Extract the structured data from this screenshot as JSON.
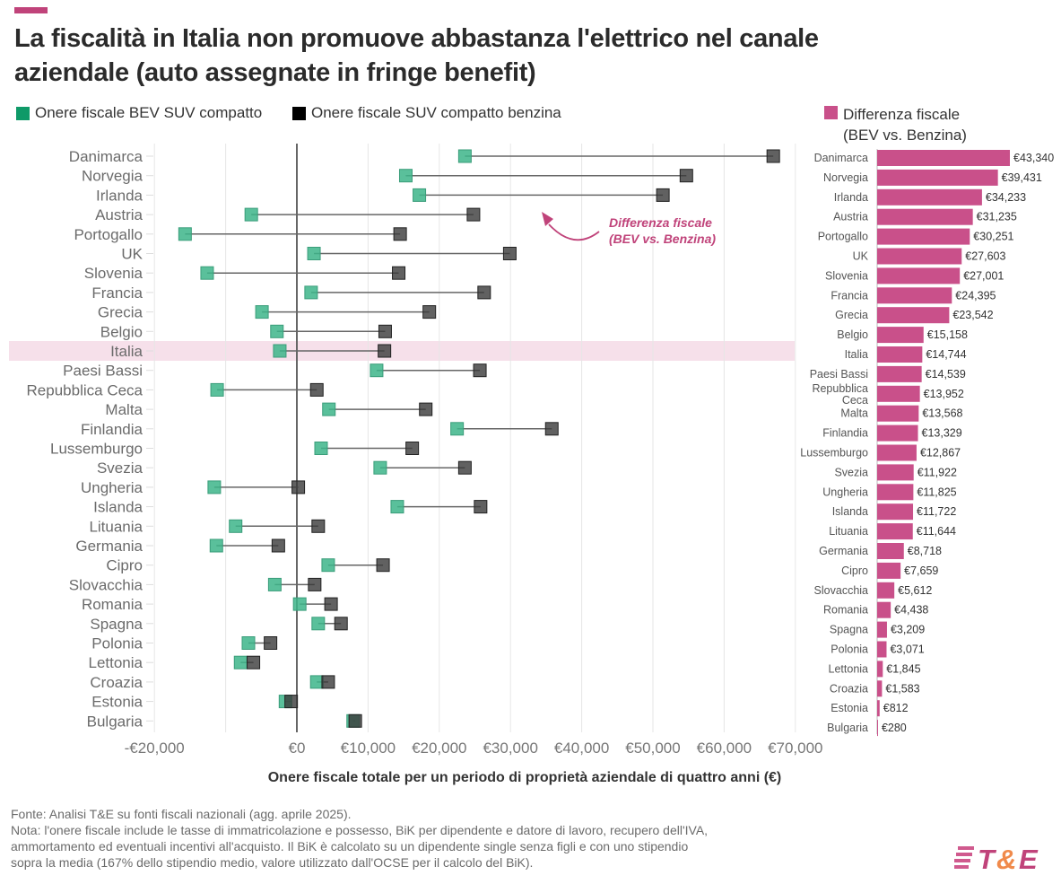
{
  "title": "La fiscalità in Italia non promuove abbastanza l'elettrico nel canale aziendale (auto assegnate in fringe benefit)",
  "colors": {
    "bev": "#3db589",
    "benzina": "#3a3a3a",
    "difference": "#c9508a",
    "highlight": "#f6e0ea",
    "accent": "#c0437a"
  },
  "legend": {
    "bev": "Onere fiscale BEV SUV compatto",
    "benzina": "Onere fiscale SUV compatto benzina",
    "difference_line1": "Differenza fiscale",
    "difference_line2": "(BEV vs. Benzina)"
  },
  "annotation": {
    "line1": "Differenza fiscale",
    "line2": "(BEV vs. Benzina)"
  },
  "chart_data": [
    {
      "type": "dumbbell",
      "xlabel": "Onere fiscale totale per un periodo di proprietà aziendale di quattro anni (€)",
      "xlim": [
        -20000,
        70000
      ],
      "xticks": [
        -20000,
        -10000,
        0,
        10000,
        20000,
        30000,
        40000,
        50000,
        60000,
        70000
      ],
      "xtick_labels": [
        "-€20,000",
        "",
        "€0",
        "€10,000",
        "€20,000",
        "€30,000",
        "€40,000",
        "€50,000",
        "€60,000",
        "€70,000"
      ],
      "grid": true,
      "highlight": "Italia",
      "categories": [
        "Danimarca",
        "Norvegia",
        "Irlanda",
        "Austria",
        "Portogallo",
        "UK",
        "Slovenia",
        "Francia",
        "Grecia",
        "Belgio",
        "Italia",
        "Paesi Bassi",
        "Repubblica Ceca",
        "Malta",
        "Finlandia",
        "Lussemburgo",
        "Svezia",
        "Ungheria",
        "Islanda",
        "Lituania",
        "Germania",
        "Cipro",
        "Slovacchia",
        "Romania",
        "Spagna",
        "Polonia",
        "Lettonia",
        "Croazia",
        "Estonia",
        "Bulgaria"
      ],
      "series": [
        {
          "name": "Onere fiscale BEV SUV compatto",
          "values": [
            23600,
            15300,
            17200,
            -6400,
            -15700,
            2400,
            -12600,
            2000,
            -4900,
            -2800,
            -2400,
            11200,
            -11200,
            4500,
            22500,
            3400,
            11700,
            -11600,
            14100,
            -8600,
            -11300,
            4400,
            -3100,
            400,
            3000,
            -6800,
            -7900,
            2800,
            -1600,
            7900
          ]
        },
        {
          "name": "Onere fiscale SUV compatto benzina",
          "values": [
            66900,
            54700,
            51400,
            24800,
            14500,
            29900,
            14300,
            26300,
            18600,
            12400,
            12300,
            25700,
            2800,
            18100,
            35800,
            16200,
            23600,
            200,
            25800,
            3000,
            -2600,
            12100,
            2500,
            4800,
            6200,
            -3700,
            -6100,
            4400,
            -800,
            8200
          ]
        }
      ]
    },
    {
      "type": "bar",
      "orientation": "horizontal",
      "title": "Differenza fiscale (BEV vs. Benzina)",
      "categories": [
        "Danimarca",
        "Norvegia",
        "Irlanda",
        "Austria",
        "Portogallo",
        "UK",
        "Slovenia",
        "Francia",
        "Grecia",
        "Belgio",
        "Italia",
        "Paesi Bassi",
        "Repubblica Ceca",
        "Malta",
        "Finlandia",
        "Lussemburgo",
        "Svezia",
        "Ungheria",
        "Islanda",
        "Lituania",
        "Germania",
        "Cipro",
        "Slovacchia",
        "Romania",
        "Spagna",
        "Polonia",
        "Lettonia",
        "Croazia",
        "Estonia",
        "Bulgaria"
      ],
      "values": [
        43340,
        39431,
        34233,
        31235,
        30251,
        27603,
        27001,
        24395,
        23542,
        15158,
        14744,
        14539,
        13952,
        13568,
        13329,
        12867,
        11922,
        11825,
        11722,
        11644,
        8718,
        7659,
        5612,
        4438,
        3209,
        3071,
        1845,
        1583,
        812,
        280
      ],
      "labels": [
        "€43,340",
        "€39,431",
        "€34,233",
        "€31,235",
        "€30,251",
        "€27,603",
        "€27,001",
        "€24,395",
        "€23,542",
        "€15,158",
        "€14,744",
        "€14,539",
        "€13,952",
        "€13,568",
        "€13,329",
        "€12,867",
        "€11,922",
        "€11,825",
        "€11,722",
        "€11,644",
        "€8,718",
        "€7,659",
        "€5,612",
        "€4,438",
        "€3,209",
        "€3,071",
        "€1,845",
        "€1,583",
        "€812",
        "€280"
      ]
    }
  ],
  "notes": {
    "line1": "Fonte: Analisi T&E su fonti fiscali nazionali (agg. aprile 2025).",
    "line2": "Nota: l'onere fiscale include le tasse di immatricolazione e possesso, BiK per dipendente e datore di lavoro, recupero dell'IVA,",
    "line3": "ammortamento ed eventuali incentivi all'acquisto. Il BiK è calcolato su un dipendente single senza figli e con uno stipendio",
    "line4": "sopra la media (167% dello stipendio medio, valore utilizzato dall'OCSE per il calcolo del BiK)."
  },
  "logo": "T&E"
}
